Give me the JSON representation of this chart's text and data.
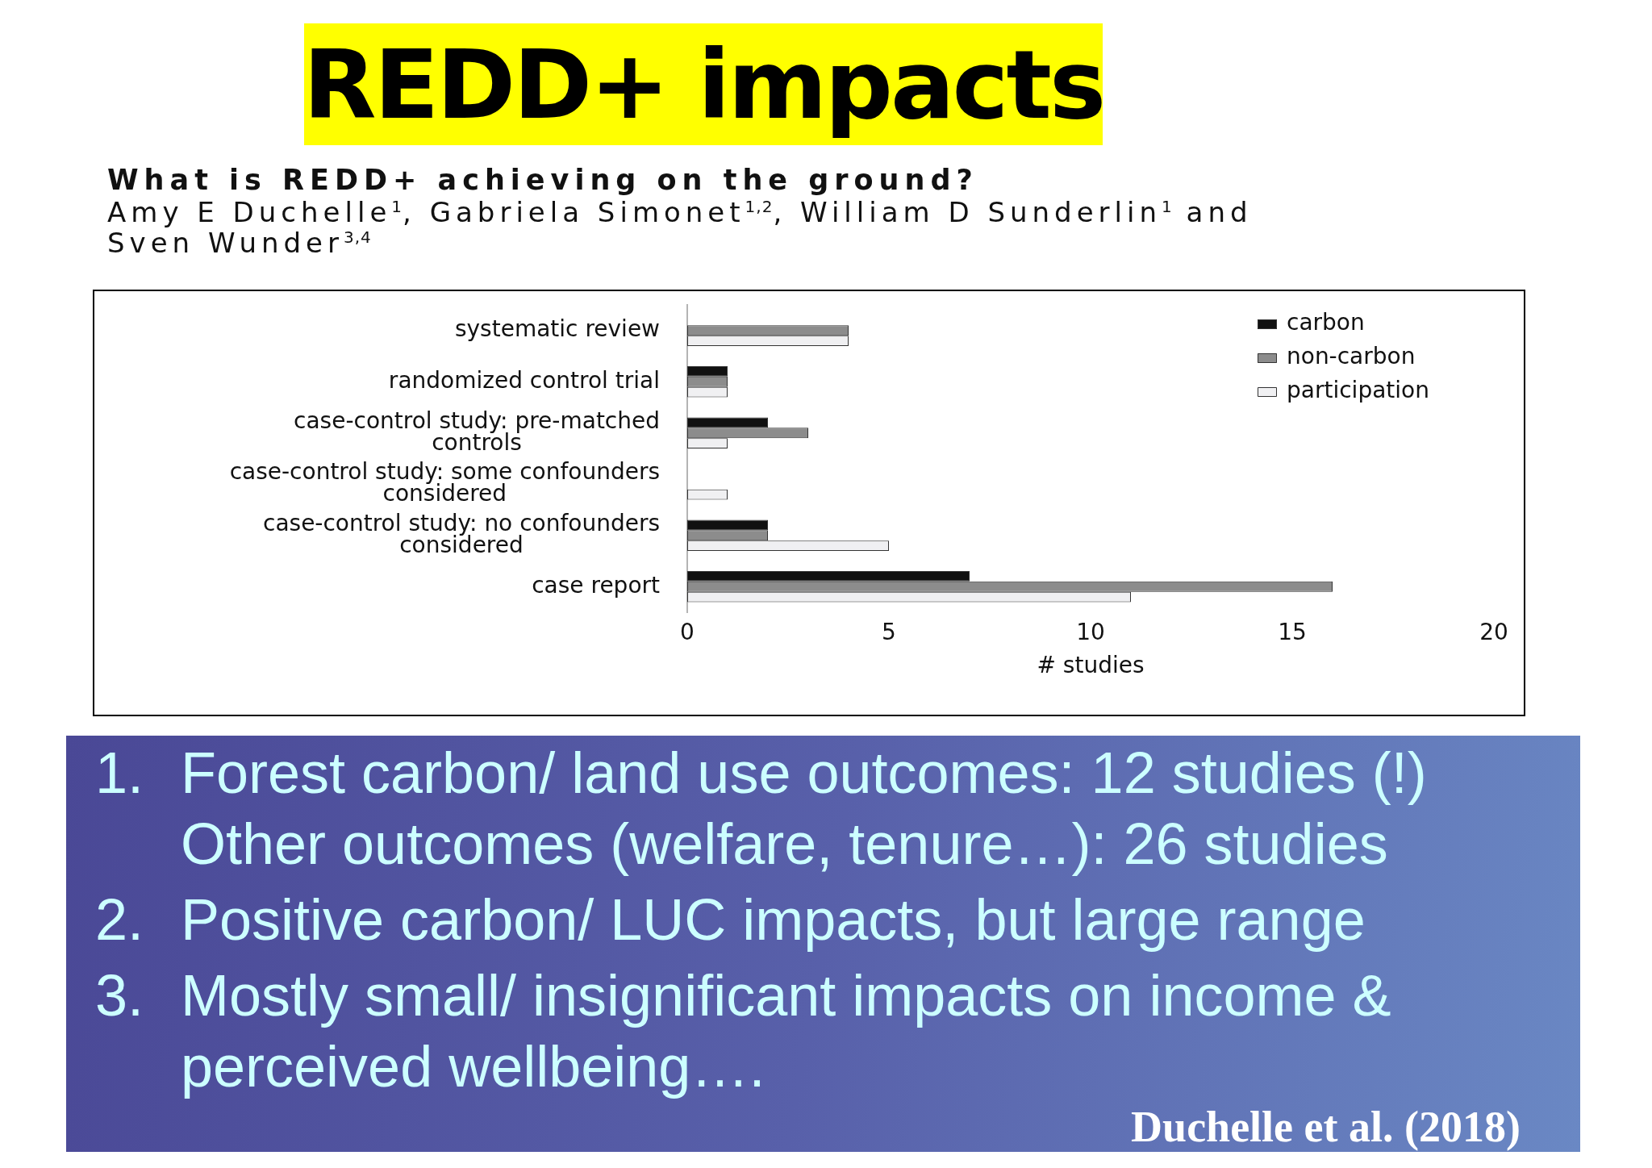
{
  "chart_data": {
    "type": "bar",
    "orientation": "horizontal",
    "title": "REDD+ impacts",
    "subtitle": "What is REDD+ achieving on the ground?",
    "xlabel": "# studies",
    "categories": [
      "systematic review",
      "randomized control trial",
      "case-control study: pre-matched controls",
      "case-control study: some confounders considered",
      "case-control study: no confounders considered",
      "case report"
    ],
    "series": [
      {
        "name": "carbon",
        "color": "#111111",
        "values": [
          0,
          1,
          2,
          0,
          2,
          7
        ]
      },
      {
        "name": "non-carbon",
        "color": "#8c8c8c",
        "values": [
          4,
          1,
          3,
          0,
          2,
          16
        ]
      },
      {
        "name": "participation",
        "color": "#f0f0f2",
        "values": [
          4,
          1,
          1,
          1,
          5,
          11
        ]
      }
    ],
    "xlim": [
      0,
      20
    ],
    "xticks": [
      0,
      5,
      10,
      15,
      20
    ],
    "legend": "top right",
    "annotations": [
      "Amy E Duchelle$^{1}$, Gabriela Simonet$^{1,2}$, William D Sunderlin$^{1}$ and Sven Wunder$^{3,4}$",
      "1. Forest carbon/ land use outcomes: 12 studies (!) Other outcomes (welfare, tenure…): 26 studies",
      "2. Positive carbon/ LUC impacts, but large range",
      "3. Mostly small/ insignificant impacts on income & perceived wellbeing….",
      "Duchelle et al. (2018)"
    ]
  }
}
